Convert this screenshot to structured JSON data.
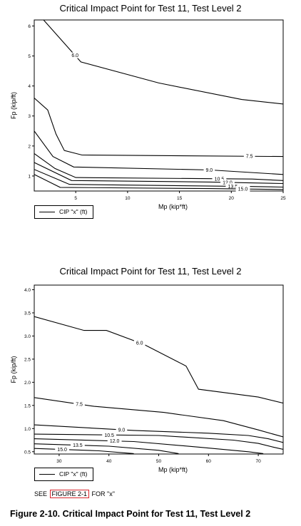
{
  "charts": [
    {
      "title": "Critical Impact Point for Test 11, Test Level 2",
      "legend_label": "CIP \"x\" (ft)"
    },
    {
      "title": "Critical Impact Point for Test 11, Test Level 2",
      "legend_label": "CIP \"x\" (ft)"
    }
  ],
  "note": {
    "prefix": "SEE ",
    "ref": "FIGURE 2-1",
    "suffix": " FOR \"x\""
  },
  "caption": "Figure 2-10. Critical Impact Point for Test 11, Test Level 2",
  "chart_data": [
    {
      "type": "contour",
      "title": "Critical Impact Point for Test 11, Test Level 2",
      "xlabel": "Mp (kip*ft)",
      "ylabel": "Fp (kip/ft)",
      "xlim": [
        1,
        25
      ],
      "ylim": [
        0.5,
        6.2
      ],
      "x_ticks": [
        5,
        10,
        15,
        20,
        25
      ],
      "y_ticks": [
        1,
        2,
        3,
        4,
        5,
        6
      ],
      "legend": "bottom-left",
      "series": [
        {
          "label": "6.0",
          "points": [
            [
              1.9,
              6.2
            ],
            [
              5.5,
              4.8
            ],
            [
              13,
              4.1
            ],
            [
              21,
              3.55
            ],
            [
              25,
              3.4
            ]
          ]
        },
        {
          "label": "7.5",
          "points": [
            [
              1,
              3.6
            ],
            [
              2.3,
              3.2
            ],
            [
              3.1,
              2.4
            ],
            [
              3.9,
              1.85
            ],
            [
              5.6,
              1.7
            ],
            [
              25,
              1.65
            ]
          ]
        },
        {
          "label": "9.0",
          "points": [
            [
              1,
              2.5
            ],
            [
              2.8,
              1.65
            ],
            [
              4.8,
              1.3
            ],
            [
              18,
              1.2
            ],
            [
              25,
              1.05
            ]
          ]
        },
        {
          "label": "10.5",
          "points": [
            [
              1,
              1.75
            ],
            [
              3,
              1.25
            ],
            [
              5,
              0.95
            ],
            [
              22,
              0.9
            ],
            [
              25,
              0.85
            ]
          ]
        },
        {
          "label": "12.0",
          "points": [
            [
              1,
              1.45
            ],
            [
              4.6,
              0.85
            ],
            [
              18,
              0.8
            ],
            [
              25,
              0.75
            ]
          ]
        },
        {
          "label": "13.5",
          "points": [
            [
              1,
              1.22
            ],
            [
              4.4,
              0.72
            ],
            [
              22,
              0.65
            ],
            [
              25,
              0.63
            ]
          ]
        },
        {
          "label": "15.0",
          "points": [
            [
              1,
              1.05
            ],
            [
              3.5,
              0.62
            ],
            [
              18,
              0.58
            ],
            [
              25,
              0.55
            ]
          ]
        }
      ]
    },
    {
      "type": "contour",
      "title": "Critical Impact Point for Test 11, Test Level 2",
      "xlabel": "Mp (kip*ft)",
      "ylabel": "Fp (kip/ft)",
      "xlim": [
        25,
        75
      ],
      "ylim": [
        0.45,
        4.1
      ],
      "x_ticks": [
        30,
        40,
        50,
        60,
        70
      ],
      "y_ticks": [
        0.5,
        1.0,
        1.5,
        2.0,
        2.5,
        3.0,
        3.5,
        4.0
      ],
      "legend": "bottom-left",
      "series": [
        {
          "label": "6.0",
          "points": [
            [
              25,
              3.42
            ],
            [
              35,
              3.12
            ],
            [
              39.5,
              3.12
            ],
            [
              47,
              2.82
            ],
            [
              55.5,
              2.35
            ],
            [
              58,
              1.85
            ],
            [
              70,
              1.68
            ],
            [
              75,
              1.55
            ]
          ]
        },
        {
          "label": "7.5",
          "points": [
            [
              25,
              1.67
            ],
            [
              37,
              1.48
            ],
            [
              51,
              1.35
            ],
            [
              63,
              1.17
            ],
            [
              70,
              0.97
            ],
            [
              75,
              0.82
            ]
          ]
        },
        {
          "label": "9.0",
          "points": [
            [
              25,
              1.08
            ],
            [
              45,
              0.96
            ],
            [
              60,
              0.9
            ],
            [
              68,
              0.85
            ],
            [
              72,
              0.78
            ],
            [
              75,
              0.7
            ]
          ]
        },
        {
          "label": "10.5",
          "points": [
            [
              25,
              0.88
            ],
            [
              50,
              0.85
            ],
            [
              65,
              0.75
            ],
            [
              70,
              0.68
            ],
            [
              73,
              0.6
            ],
            [
              75,
              0.55
            ]
          ]
        },
        {
          "label": "12.0",
          "points": [
            [
              25,
              0.78
            ],
            [
              45,
              0.72
            ],
            [
              58,
              0.6
            ],
            [
              68,
              0.5
            ],
            [
              71,
              0.46
            ]
          ]
        },
        {
          "label": "13.5",
          "points": [
            [
              25,
              0.67
            ],
            [
              40,
              0.62
            ],
            [
              50,
              0.53
            ],
            [
              54,
              0.46
            ]
          ]
        },
        {
          "label": "15.0",
          "points": [
            [
              25,
              0.57
            ],
            [
              38,
              0.52
            ],
            [
              45,
              0.46
            ]
          ]
        }
      ]
    }
  ]
}
